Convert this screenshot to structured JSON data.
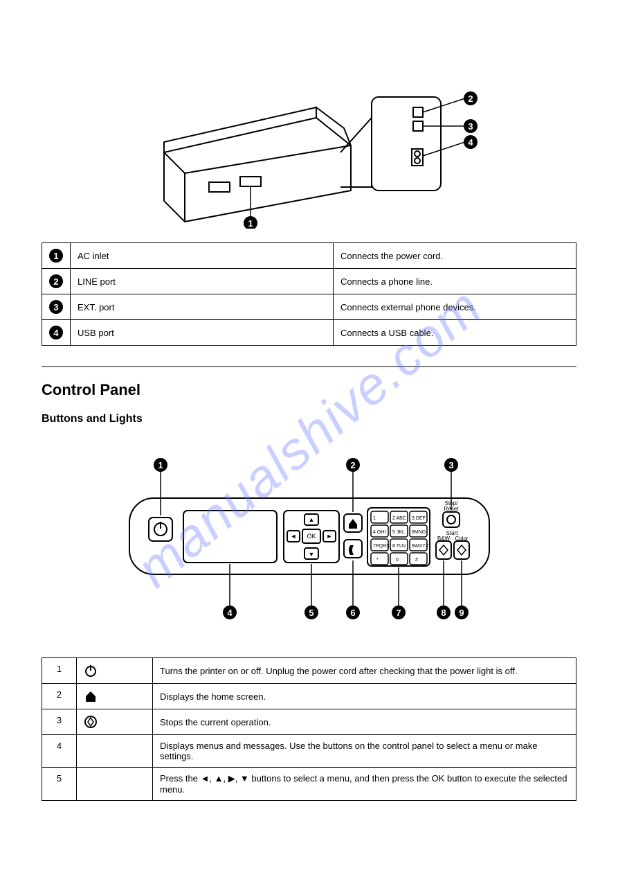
{
  "watermark": "manualshive.com",
  "table1": {
    "rows": [
      {
        "num": "1",
        "name": "AC inlet",
        "desc": "Connects the power cord."
      },
      {
        "num": "2",
        "name": "LINE port",
        "desc": "Connects a phone line."
      },
      {
        "num": "3",
        "name": "EXT. port",
        "desc": "Connects external phone devices."
      },
      {
        "num": "4",
        "name": "USB port",
        "desc": "Connects a USB cable."
      }
    ]
  },
  "section_heading": "Control Panel",
  "sub_heading": "Buttons and Lights",
  "table2": {
    "rows": [
      {
        "num": "1",
        "icon": "power",
        "desc": "Turns the printer on or off. Unplug the power cord after checking that the power light is off."
      },
      {
        "num": "2",
        "icon": "home",
        "desc": "Displays the home screen."
      },
      {
        "num": "3",
        "icon": "stop",
        "desc": "Stops the current operation."
      },
      {
        "num": "4",
        "icon": "",
        "desc": "Displays menus and messages. Use the buttons on the control panel to select a menu or make settings."
      },
      {
        "num": "5",
        "icon": "",
        "desc": "Press the ◄, ▲, ▶, ▼ buttons to select a menu, and then press the OK button to execute the selected menu."
      }
    ]
  },
  "styling": {
    "page_bg": "#ffffff",
    "border_color": "#000000",
    "watermark_color": "rgba(100,120,255,0.35)",
    "font_family": "Arial, sans-serif"
  }
}
